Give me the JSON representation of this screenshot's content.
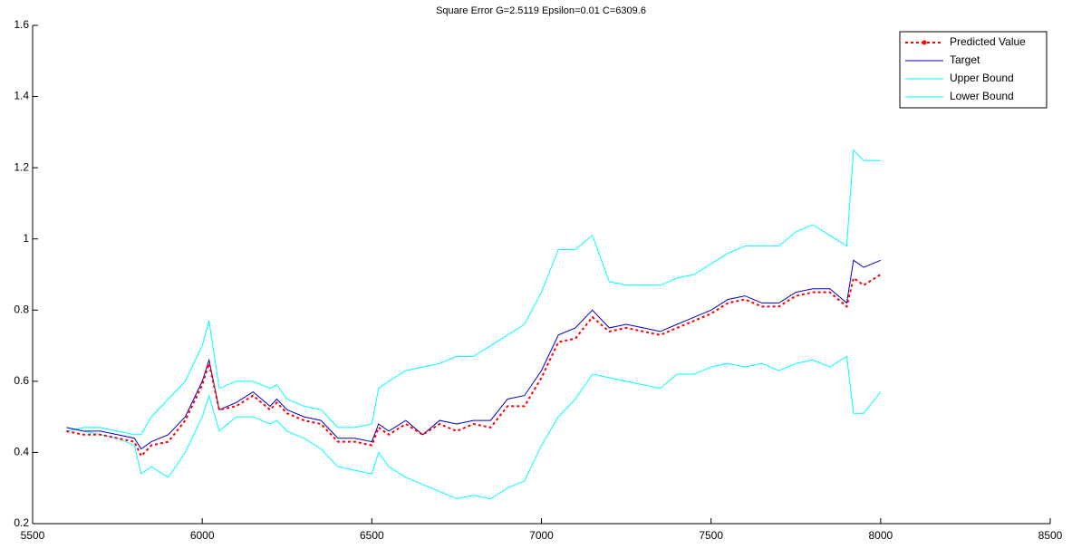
{
  "chart_data": {
    "type": "line",
    "title": "Square Error G=2.5119 Epsilon=0.01 C=6309.6",
    "x": [
      5600,
      5650,
      5700,
      5750,
      5800,
      5820,
      5850,
      5900,
      5950,
      6000,
      6020,
      6050,
      6100,
      6150,
      6200,
      6220,
      6250,
      6300,
      6350,
      6400,
      6450,
      6500,
      6520,
      6550,
      6600,
      6650,
      6700,
      6750,
      6800,
      6850,
      6900,
      6950,
      7000,
      7050,
      7100,
      7150,
      7200,
      7250,
      7300,
      7350,
      7400,
      7450,
      7500,
      7550,
      7600,
      7650,
      7700,
      7750,
      7800,
      7850,
      7900,
      7920,
      7950,
      8000
    ],
    "series": [
      {
        "name": "Predicted Value",
        "color": "#ff0000",
        "line_style": ":",
        "values": [
          0.46,
          0.45,
          0.45,
          0.44,
          0.43,
          0.39,
          0.42,
          0.43,
          0.49,
          0.59,
          0.65,
          0.52,
          0.53,
          0.56,
          0.52,
          0.54,
          0.51,
          0.49,
          0.48,
          0.43,
          0.43,
          0.42,
          0.47,
          0.45,
          0.48,
          0.45,
          0.48,
          0.46,
          0.48,
          0.47,
          0.53,
          0.53,
          0.61,
          0.71,
          0.72,
          0.78,
          0.74,
          0.75,
          0.74,
          0.73,
          0.75,
          0.77,
          0.79,
          0.82,
          0.83,
          0.81,
          0.81,
          0.84,
          0.85,
          0.85,
          0.81,
          0.89,
          0.87,
          0.9
        ]
      },
      {
        "name": "Target",
        "color": "#0000cc",
        "line_style": "-",
        "values": [
          0.47,
          0.46,
          0.46,
          0.45,
          0.44,
          0.41,
          0.43,
          0.45,
          0.5,
          0.6,
          0.66,
          0.52,
          0.54,
          0.57,
          0.53,
          0.55,
          0.52,
          0.5,
          0.49,
          0.44,
          0.44,
          0.43,
          0.48,
          0.46,
          0.49,
          0.45,
          0.49,
          0.48,
          0.49,
          0.49,
          0.55,
          0.56,
          0.63,
          0.73,
          0.75,
          0.8,
          0.75,
          0.76,
          0.75,
          0.74,
          0.76,
          0.78,
          0.8,
          0.83,
          0.84,
          0.82,
          0.82,
          0.85,
          0.86,
          0.86,
          0.82,
          0.94,
          0.92,
          0.94
        ]
      },
      {
        "name": "Upper Bound",
        "color": "#00ffff",
        "line_style": "-",
        "values": [
          0.46,
          0.47,
          0.47,
          0.46,
          0.45,
          0.45,
          0.5,
          0.55,
          0.6,
          0.7,
          0.77,
          0.58,
          0.6,
          0.6,
          0.58,
          0.59,
          0.55,
          0.53,
          0.52,
          0.47,
          0.47,
          0.48,
          0.58,
          0.6,
          0.63,
          0.64,
          0.65,
          0.67,
          0.67,
          0.7,
          0.73,
          0.76,
          0.85,
          0.97,
          0.97,
          1.01,
          0.88,
          0.87,
          0.87,
          0.87,
          0.89,
          0.9,
          0.93,
          0.96,
          0.98,
          0.98,
          0.98,
          1.02,
          1.04,
          1.01,
          0.98,
          1.25,
          1.22,
          1.22
        ]
      },
      {
        "name": "Lower Bound",
        "color": "#00ffff",
        "line_style": "-",
        "values": [
          0.47,
          0.46,
          0.45,
          0.44,
          0.42,
          0.34,
          0.36,
          0.33,
          0.4,
          0.5,
          0.56,
          0.46,
          0.5,
          0.5,
          0.48,
          0.49,
          0.46,
          0.44,
          0.41,
          0.36,
          0.35,
          0.34,
          0.4,
          0.36,
          0.33,
          0.31,
          0.29,
          0.27,
          0.28,
          0.27,
          0.3,
          0.32,
          0.42,
          0.5,
          0.55,
          0.62,
          0.61,
          0.6,
          0.59,
          0.58,
          0.62,
          0.62,
          0.64,
          0.65,
          0.64,
          0.65,
          0.63,
          0.65,
          0.66,
          0.64,
          0.67,
          0.51,
          0.51,
          0.57
        ]
      }
    ],
    "xlim": [
      5500,
      8500
    ],
    "xticks": [
      5500,
      6000,
      6500,
      7000,
      7500,
      8000,
      8500
    ],
    "ylim": [
      0.2,
      1.6
    ],
    "yticks": [
      0.2,
      0.4,
      0.6,
      0.8,
      1,
      1.2,
      1.4,
      1.6
    ],
    "grid": false,
    "legend": "northeast"
  }
}
